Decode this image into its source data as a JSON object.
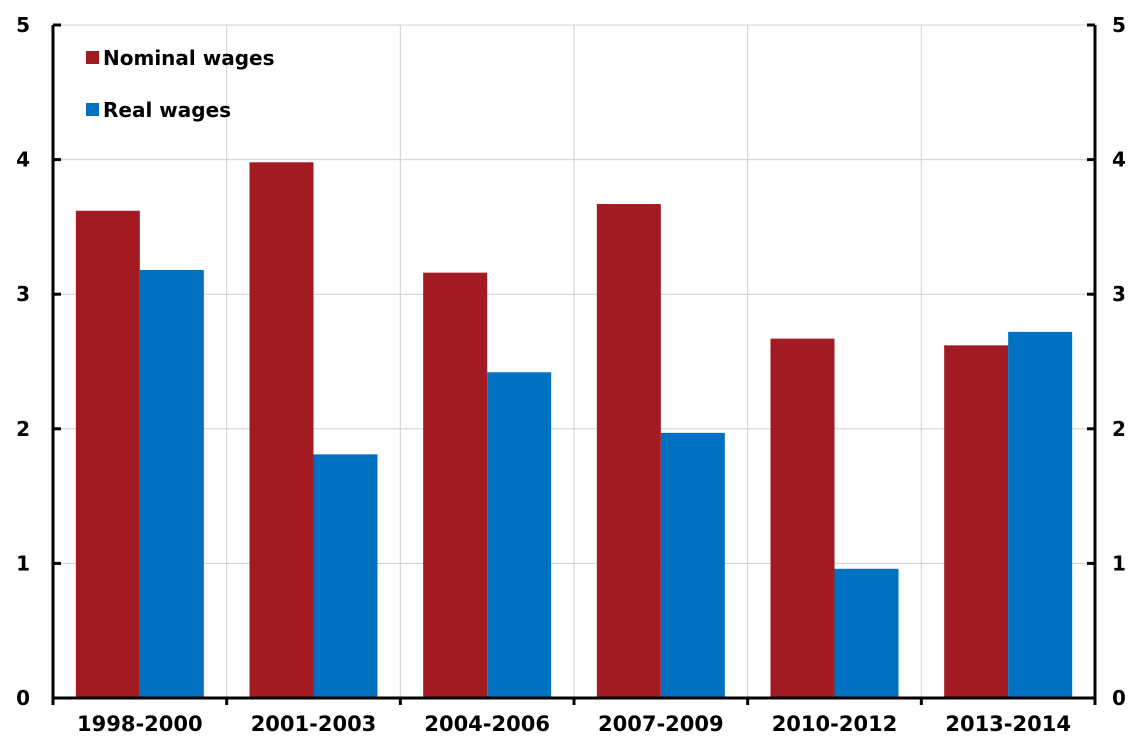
{
  "chart_data": {
    "type": "bar",
    "categories": [
      "1998-2000",
      "2001-2003",
      "2004-2006",
      "2007-2009",
      "2010-2012",
      "2013-2014"
    ],
    "series": [
      {
        "name": "Nominal wages",
        "color": "#a31b22",
        "values": [
          3.62,
          3.98,
          3.16,
          3.67,
          2.67,
          2.62
        ]
      },
      {
        "name": "Real wages",
        "color": "#0070c0",
        "values": [
          3.18,
          1.81,
          2.42,
          1.97,
          0.96,
          2.72
        ]
      }
    ],
    "ylim": [
      0,
      5
    ],
    "yticks": [
      "0",
      "1",
      "2",
      "3",
      "4",
      "5"
    ],
    "secondary_axis_ticks": [
      "0",
      "1",
      "2",
      "3",
      "4",
      "5"
    ],
    "grid": true,
    "legend_position": "top-left",
    "title": "",
    "xlabel": "",
    "ylabel": ""
  }
}
